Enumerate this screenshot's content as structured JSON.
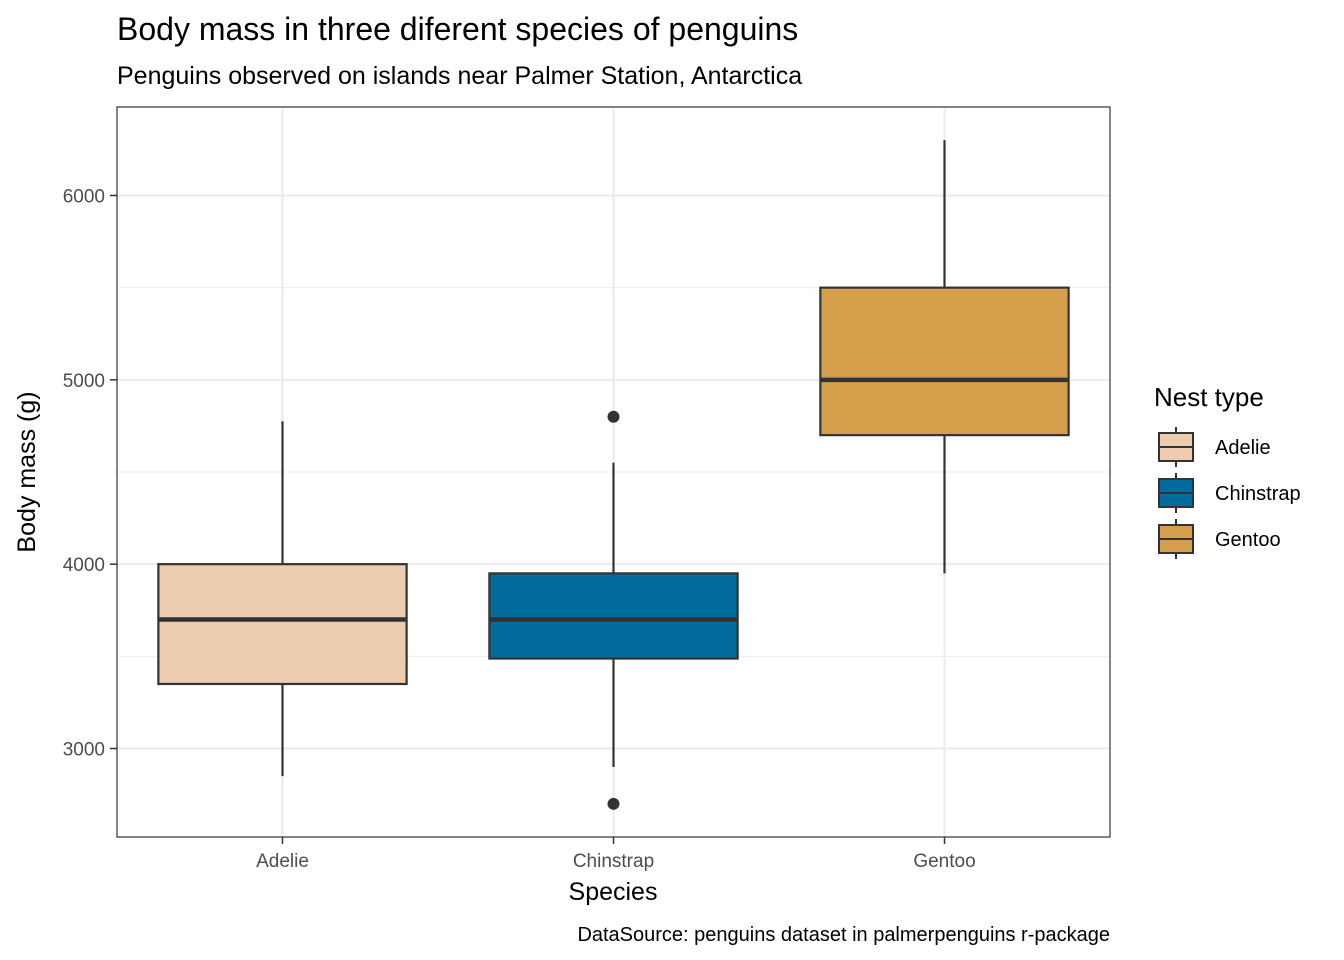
{
  "chart_data": {
    "type": "boxplot",
    "title": "Body mass in three diferent species of penguins",
    "subtitle": "Penguins observed on islands near Palmer Station, Antarctica",
    "xlabel": "Species",
    "ylabel": "Body mass (g)",
    "caption": "DataSource: penguins dataset in palmerpenguins r-package",
    "categories": [
      "Adelie",
      "Chinstrap",
      "Gentoo"
    ],
    "y_ticks": [
      3000,
      4000,
      5000,
      6000
    ],
    "y_tick_labels": [
      "3000",
      "4000",
      "5000",
      "6000"
    ],
    "ylim": [
      2520,
      6480
    ],
    "grid": true,
    "boxes": [
      {
        "category": "Adelie",
        "min": 2850,
        "q1": 3350,
        "median": 3700,
        "q3": 4000,
        "max": 4775,
        "outliers": [],
        "color": "#EDCBAF"
      },
      {
        "category": "Chinstrap",
        "min": 2900,
        "q1": 3488,
        "median": 3700,
        "q3": 3950,
        "max": 4550,
        "outliers": [
          4800,
          2700
        ],
        "color": "#016C9D"
      },
      {
        "category": "Gentoo",
        "min": 3950,
        "q1": 4700,
        "median": 5000,
        "q3": 5500,
        "max": 6300,
        "outliers": [],
        "color": "#D59F4C"
      }
    ],
    "legend": {
      "title": "Nest type",
      "position": "right",
      "items": [
        {
          "label": "Adelie",
          "color": "#EDCBAF"
        },
        {
          "label": "Chinstrap",
          "color": "#016C9D"
        },
        {
          "label": "Gentoo",
          "color": "#D59F4C"
        }
      ]
    }
  }
}
